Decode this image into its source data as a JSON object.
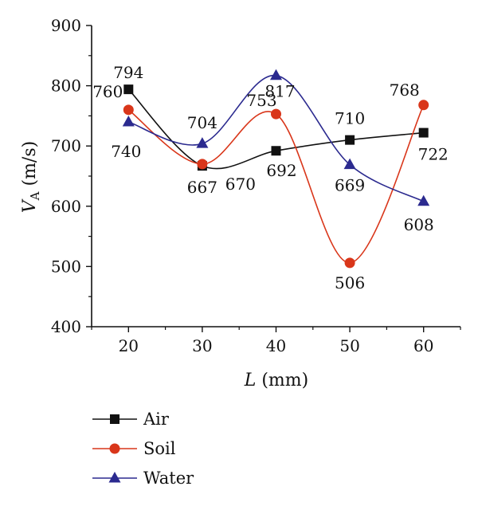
{
  "chart_data": {
    "type": "line",
    "x": [
      20,
      30,
      40,
      50,
      60
    ],
    "xlabel": {
      "var": "L",
      "unit": " (mm)"
    },
    "ylabel": {
      "var": "V",
      "sub": "A",
      "unit": " (m/s)"
    },
    "xlim": [
      15,
      65
    ],
    "ylim": [
      400,
      900
    ],
    "xticks": [
      20,
      30,
      40,
      50,
      60
    ],
    "yticks": [
      400,
      500,
      600,
      700,
      800,
      900
    ],
    "grid": false,
    "legend_position": "bottom-left",
    "series": [
      {
        "name": "Air",
        "values": [
          794,
          667,
          692,
          710,
          722
        ],
        "color": "#111111",
        "marker": "square",
        "curve": "smooth"
      },
      {
        "name": "Soil",
        "values": [
          760,
          670,
          753,
          506,
          768
        ],
        "color": "#d9361a",
        "marker": "circle",
        "curve": "spline"
      },
      {
        "name": "Water",
        "values": [
          740,
          704,
          817,
          669,
          608
        ],
        "color": "#2b2a8f",
        "marker": "triangle",
        "curve": "spline"
      }
    ]
  }
}
